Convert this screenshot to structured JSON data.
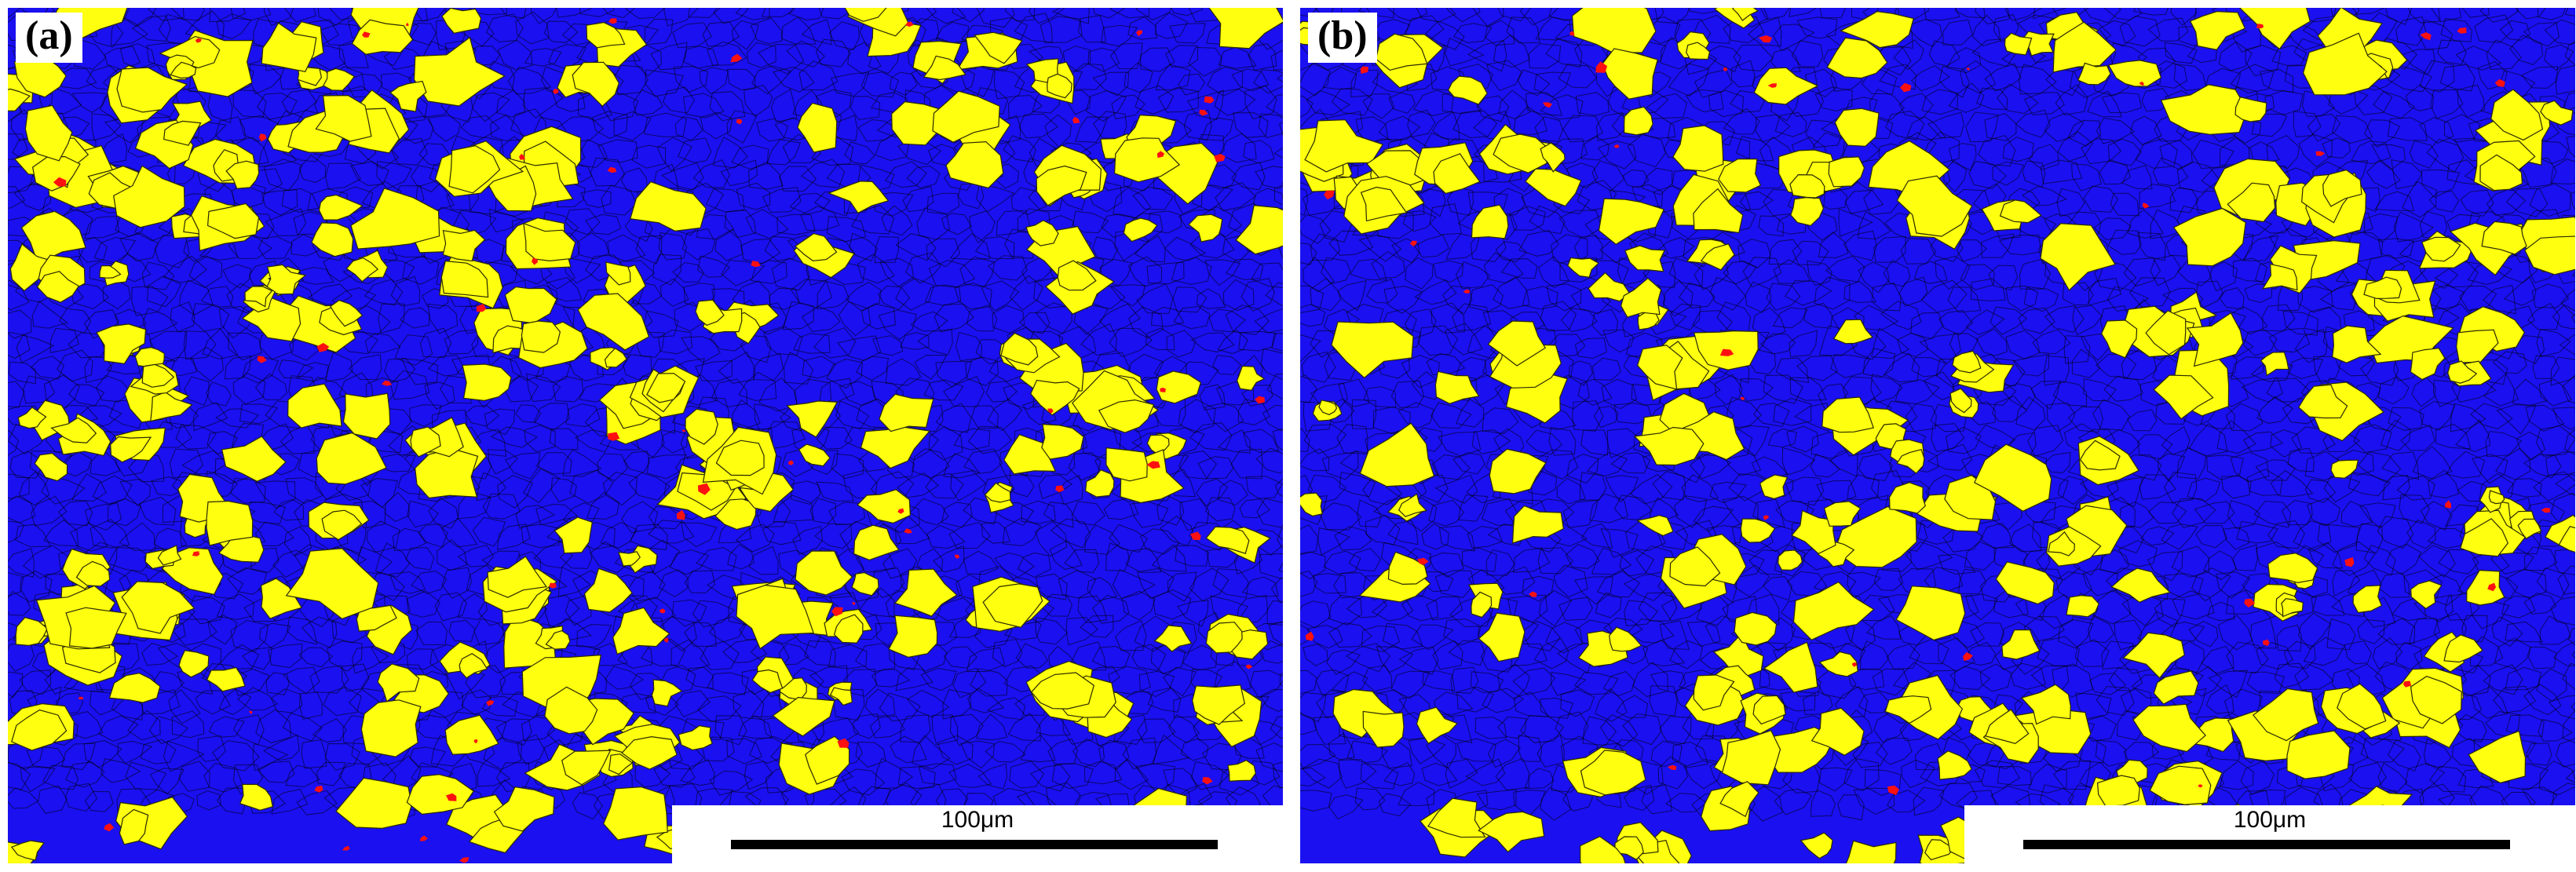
{
  "figure": {
    "panels": [
      {
        "label": "(a)",
        "scale_bar": "100μm",
        "phase_colors": {
          "matrix": "#1a10f0",
          "second_phase": "#ffff10",
          "third_phase": "#ff1010",
          "grain_boundary": "#000000"
        },
        "yellow_fraction": 0.24,
        "red_fraction": 0.006
      },
      {
        "label": "(b)",
        "scale_bar": "100μm",
        "phase_colors": {
          "matrix": "#1a10f0",
          "second_phase": "#ffff10",
          "third_phase": "#ff1010",
          "grain_boundary": "#000000"
        },
        "yellow_fraction": 0.22,
        "red_fraction": 0.004
      }
    ]
  }
}
